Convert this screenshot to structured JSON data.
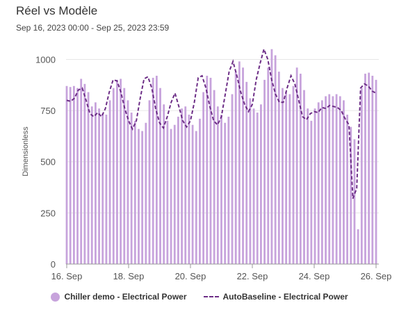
{
  "title": "Réel vs Modèle",
  "subtitle": "Sep 16, 2023 00:00 - Sep 25, 2023 23:59",
  "colors": {
    "bar": "#c7a3dc",
    "line": "#6c2d86",
    "grid": "#e6e6e6",
    "axis": "#999999"
  },
  "chart_data": {
    "type": "bar",
    "ylabel": "Dimensionless",
    "ylim": [
      0,
      1100
    ],
    "yticks": [
      0,
      250,
      500,
      750,
      1000
    ],
    "grid": true,
    "x_ticks": [
      {
        "label": "16. Sep",
        "day": 0
      },
      {
        "label": "18. Sep",
        "day": 2
      },
      {
        "label": "20. Sep",
        "day": 4
      },
      {
        "label": "22. Sep",
        "day": 6
      },
      {
        "label": "24. Sep",
        "day": 8
      },
      {
        "label": "26. Sep",
        "day": 10
      }
    ],
    "legend_position": "bottom",
    "series": [
      {
        "name": "Chiller demo - Electrical Power",
        "kind": "bar",
        "values": [
          870,
          865,
          870,
          860,
          905,
          880,
          840,
          770,
          790,
          760,
          735,
          730,
          800,
          860,
          900,
          905,
          860,
          800,
          740,
          700,
          660,
          650,
          690,
          800,
          910,
          920,
          860,
          780,
          700,
          660,
          680,
          720,
          760,
          770,
          730,
          680,
          650,
          710,
          840,
          920,
          910,
          850,
          770,
          730,
          690,
          720,
          830,
          940,
          990,
          960,
          890,
          810,
          760,
          740,
          780,
          900,
          960,
          1050,
          1020,
          940,
          860,
          840,
          830,
          870,
          960,
          930,
          850,
          760,
          700,
          760,
          790,
          800,
          820,
          830,
          820,
          830,
          820,
          800,
          730,
          670,
          610,
          170,
          860,
          930,
          935,
          920,
          900
        ]
      },
      {
        "name": "AutoBaseline - Electrical Power",
        "kind": "line",
        "values": [
          800,
          795,
          810,
          850,
          860,
          800,
          735,
          720,
          740,
          720,
          760,
          840,
          900,
          895,
          840,
          760,
          700,
          660,
          700,
          810,
          905,
          915,
          860,
          760,
          690,
          665,
          720,
          790,
          835,
          770,
          700,
          670,
          700,
          790,
          910,
          920,
          860,
          770,
          700,
          680,
          720,
          830,
          940,
          990,
          920,
          840,
          780,
          745,
          780,
          900,
          980,
          1050,
          1000,
          900,
          830,
          790,
          790,
          860,
          920,
          880,
          800,
          720,
          705,
          735,
          745,
          740,
          765,
          760,
          775,
          770,
          765,
          750,
          710,
          680,
          320,
          370,
          860,
          880,
          870,
          845,
          835
        ]
      }
    ]
  }
}
